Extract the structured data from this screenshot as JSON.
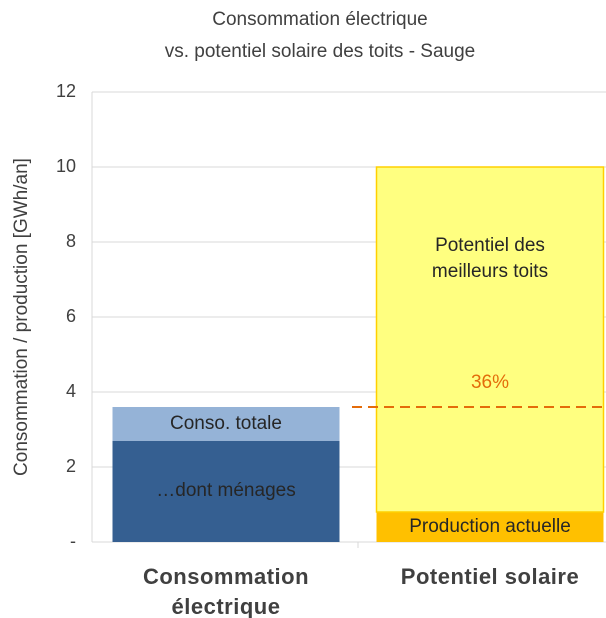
{
  "chart_data": {
    "type": "stacked_bar",
    "title": [
      "Consommation électrique",
      "vs. potentiel solaire des toits - Sauge"
    ],
    "y_label": "Consommation / production [GWh/an]",
    "categories": [
      "Consommation électrique",
      "Potentiel solaire"
    ],
    "series": [
      {
        "name": "…dont ménages",
        "color": "#355f91",
        "values": [
          2.7,
          null
        ]
      },
      {
        "name": "Conso. totale",
        "color": "#95b3d7",
        "values": [
          0.9,
          null
        ]
      },
      {
        "name": "Production actuelle",
        "color": "#ffc000",
        "values": [
          null,
          0.8
        ]
      },
      {
        "name": "Potentiel des meilleurs toits",
        "color": "#ffff80",
        "values": [
          null,
          9.2
        ]
      }
    ],
    "reference_line": {
      "value": 3.6,
      "label": "36%",
      "color": "#e46c0a"
    },
    "ylim": [
      0,
      12
    ],
    "yticks": [
      {
        "value": 0,
        "label": "-"
      },
      2,
      4,
      6,
      8,
      10,
      12
    ],
    "grid": true
  }
}
